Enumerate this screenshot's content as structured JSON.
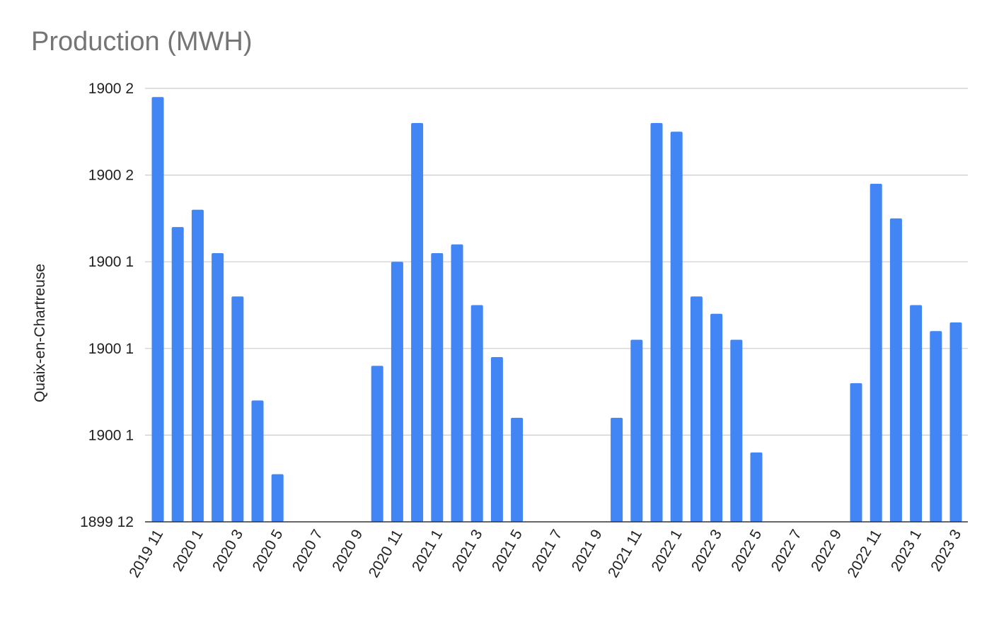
{
  "chart_data": {
    "type": "bar",
    "title": "Production (MWH)",
    "xlabel": "",
    "ylabel": "Quaix-en-Chartreuse",
    "color": "#4285f4",
    "grid": true,
    "legend": "none",
    "ylim": [
      0,
      50
    ],
    "y_ticks": [
      {
        "value": 0,
        "label": "1899 12"
      },
      {
        "value": 10,
        "label": "1900 1"
      },
      {
        "value": 20,
        "label": "1900 1"
      },
      {
        "value": 30,
        "label": "1900 1"
      },
      {
        "value": 40,
        "label": "1900 2"
      },
      {
        "value": 50,
        "label": "1900 2"
      }
    ],
    "categories": [
      "2019 11",
      "2019 12",
      "2020 1",
      "2020 2",
      "2020 3",
      "2020 4",
      "2020 5",
      "2020 6",
      "2020 7",
      "2020 8",
      "2020 9",
      "2020 10",
      "2020 11",
      "2020 12",
      "2021 1",
      "2021 2",
      "2021 3",
      "2021 4",
      "2021 5",
      "2021 6",
      "2021 7",
      "2021 8",
      "2021 9",
      "2021 10",
      "2021 11",
      "2021 12",
      "2022 1",
      "2022 2",
      "2022 3",
      "2022 4",
      "2022 5",
      "2022 6",
      "2022 7",
      "2022 8",
      "2022 9",
      "2022 10",
      "2022 11",
      "2022 12",
      "2023 1",
      "2023 2",
      "2023 3",
      "2023 4"
    ],
    "x_tick_labels": [
      "2019 11",
      "",
      "2020 1",
      "",
      "2020 3",
      "",
      "2020 5",
      "",
      "2020 7",
      "",
      "2020 9",
      "",
      "2020 11",
      "",
      "2021 1",
      "",
      "2021 3",
      "",
      "2021 5",
      "",
      "2021 7",
      "",
      "2021 9",
      "",
      "2021 11",
      "",
      "2022 1",
      "",
      "2022 3",
      "",
      "2022 5",
      "",
      "2022 7",
      "",
      "2022 9",
      "",
      "2022 11",
      "",
      "2023 1",
      "",
      "2023 3",
      ""
    ],
    "values": [
      49,
      34,
      36,
      31,
      26,
      14,
      5.5,
      0,
      0,
      0,
      0,
      18,
      30,
      46,
      31,
      32,
      25,
      19,
      12,
      0,
      0,
      0,
      0,
      12,
      21,
      46,
      45,
      26,
      24,
      21,
      8,
      0,
      0,
      0,
      0,
      16,
      39,
      35,
      25,
      22,
      23,
      0
    ]
  }
}
